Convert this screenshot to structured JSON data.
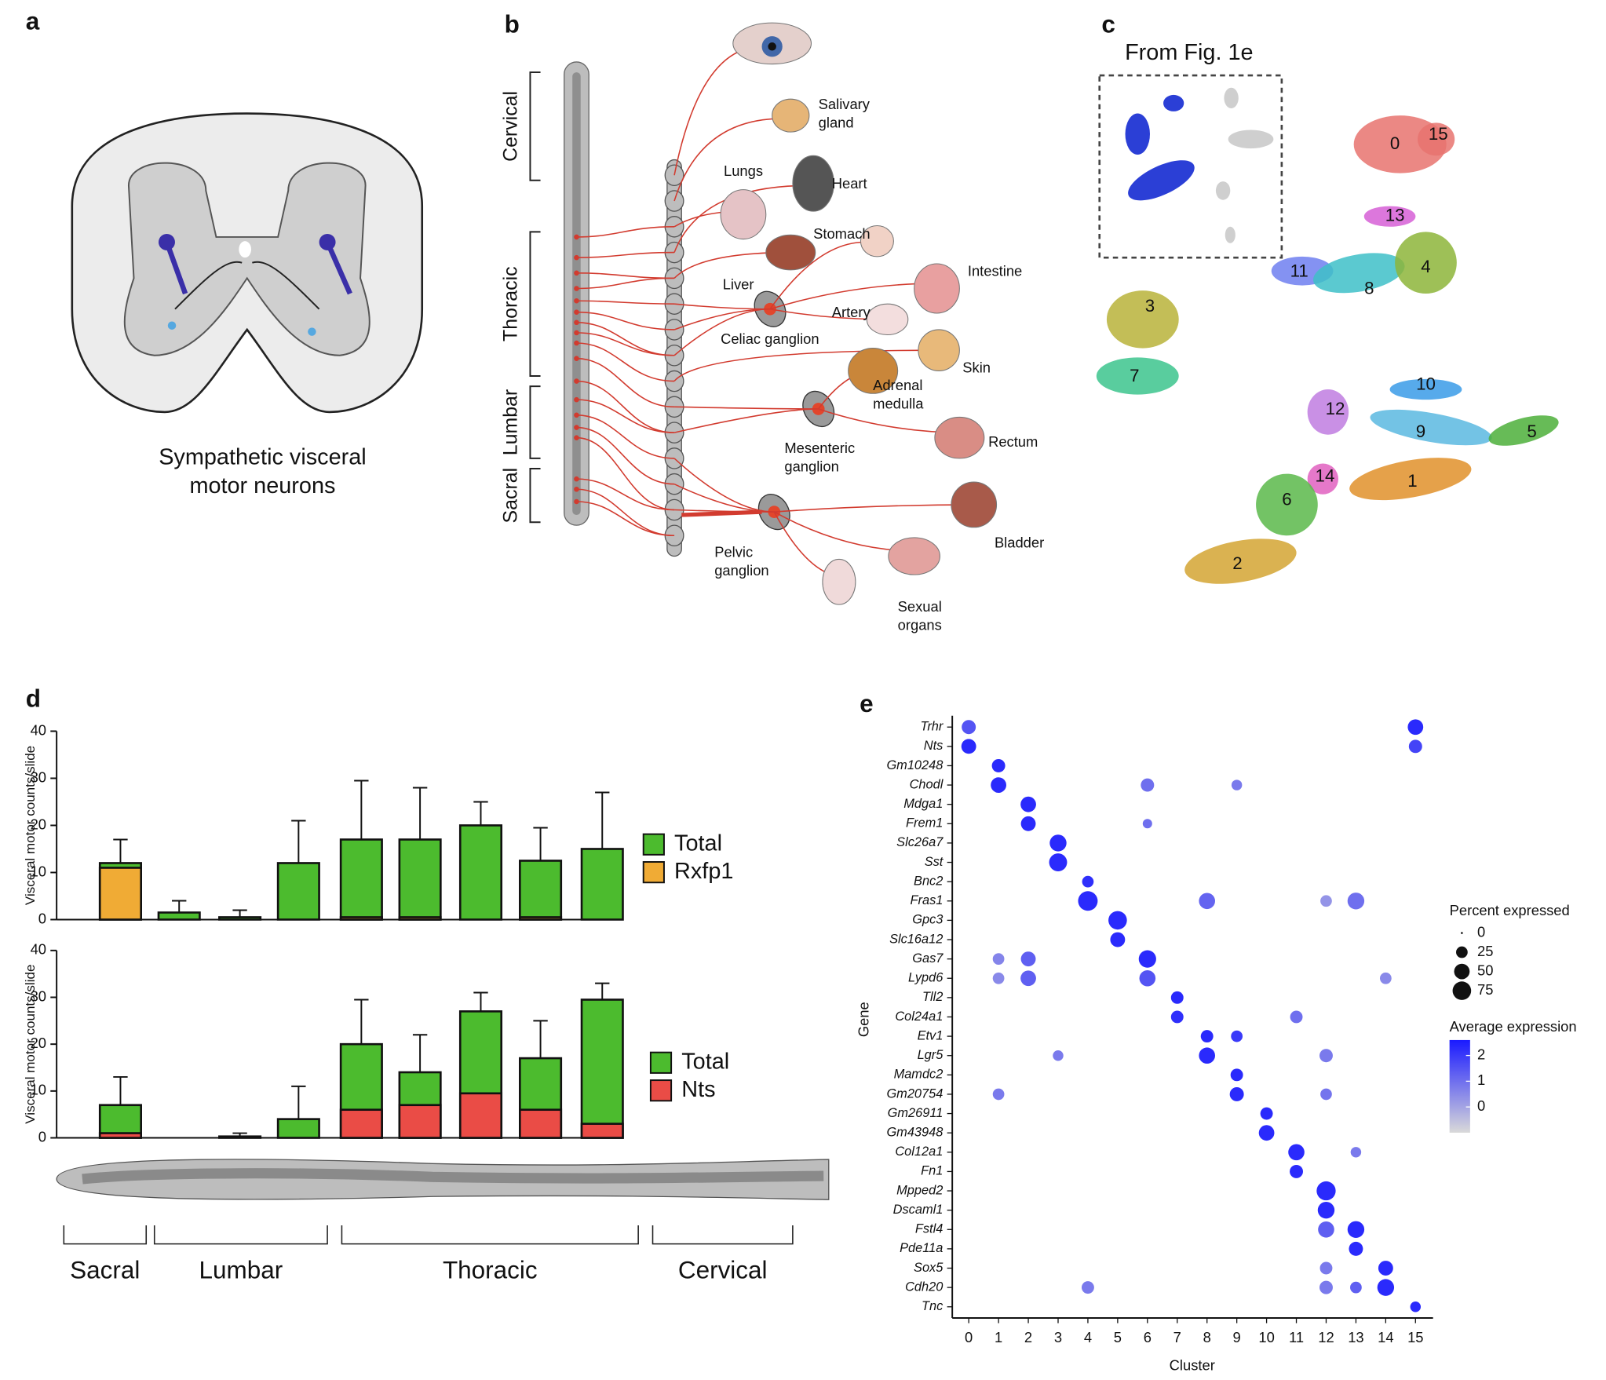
{
  "panel_labels": [
    "a",
    "b",
    "c",
    "d",
    "e"
  ],
  "panel_a": {
    "caption": [
      "Sympathetic visceral",
      "motor neurons"
    ]
  },
  "panel_b": {
    "regions": [
      "Cervical",
      "Thoracic",
      "Lumbar",
      "Sacral"
    ],
    "labels": [
      [
        "Salivary",
        "gland"
      ],
      [
        "Lungs"
      ],
      [
        "Heart"
      ],
      [
        "Stomach"
      ],
      [
        "Liver"
      ],
      [
        "Intestine"
      ],
      [
        "Artery"
      ],
      [
        "Celiac ganglion"
      ],
      [
        "Skin"
      ],
      [
        "Adrenal",
        "medulla"
      ],
      [
        "Mesenteric",
        "ganglion"
      ],
      [
        "Rectum"
      ],
      [
        "Pelvic",
        "ganglion"
      ],
      [
        "Bladder"
      ],
      [
        "Sexual",
        "organs"
      ]
    ]
  },
  "panel_c": {
    "inset_title": "From Fig. 1e",
    "cluster_labels": [
      "0",
      "15",
      "13",
      "11",
      "8",
      "4",
      "3",
      "7",
      "10",
      "12",
      "9",
      "5",
      "14",
      "1",
      "6",
      "2"
    ]
  },
  "region_labels": [
    "Sacral",
    "Lumbar",
    "Thoracic",
    "Cervical"
  ],
  "chart_data": [
    {
      "type": "bar",
      "y_label": "Visceral motor counts/slide",
      "ylim": [
        0,
        40
      ],
      "yticks": [
        0,
        10,
        20,
        30,
        40
      ],
      "series": [
        {
          "name": "Total",
          "color": "#4cbb2e",
          "values": [
            12,
            1.5,
            0.5,
            12,
            17,
            17,
            20,
            12.5,
            15
          ],
          "errors": [
            5,
            2.5,
            1.5,
            9,
            12.5,
            11,
            5,
            7,
            12
          ]
        },
        {
          "name": "Rxfp1",
          "color": "#f0ab35",
          "values": [
            11,
            0,
            0,
            0,
            0.5,
            0.5,
            0,
            0.5,
            0
          ]
        }
      ]
    },
    {
      "type": "bar",
      "y_label": "Visceral motor counts/slide",
      "ylim": [
        0,
        40
      ],
      "yticks": [
        0,
        10,
        20,
        30,
        40
      ],
      "series": [
        {
          "name": "Total",
          "color": "#4cbb2e",
          "values": [
            7,
            0,
            0.3,
            4,
            20,
            14,
            27,
            17,
            29.5
          ],
          "errors": [
            6,
            0,
            0.7,
            7,
            9.5,
            8,
            4,
            8,
            3.5
          ]
        },
        {
          "name": "Nts",
          "color": "#ea4c46",
          "values": [
            1,
            0,
            0,
            0,
            6,
            7,
            9.5,
            6,
            3
          ]
        }
      ]
    },
    {
      "type": "dot",
      "x_label": "Cluster",
      "y_label": "Gene",
      "xticks": [
        0,
        1,
        2,
        3,
        4,
        5,
        6,
        7,
        8,
        9,
        10,
        11,
        12,
        13,
        14,
        15
      ],
      "genes": [
        "Trhr",
        "Nts",
        "Gm10248",
        "Chodl",
        "Mdga1",
        "Frem1",
        "Slc26a7",
        "Sst",
        "Bnc2",
        "Fras1",
        "Gpc3",
        "Slc16a12",
        "Gas7",
        "Lypd6",
        "Tll2",
        "Col24a1",
        "Etv1",
        "Lgr5",
        "Mamdc2",
        "Gm20754",
        "Gm26911",
        "Gm43948",
        "Col12a1",
        "Fn1",
        "Mpped2",
        "Dscaml1",
        "Fstl4",
        "Pde11a",
        "Sox5",
        "Cdh20",
        "Tnc"
      ],
      "size_title": "Percent expressed",
      "size_ticks": [
        0,
        25,
        50,
        75
      ],
      "color_title": "Average expression",
      "color_lim": [
        -1,
        2.6
      ],
      "color_ticks": [
        2,
        1,
        0
      ],
      "color_low": "#d9d9d9",
      "color_high": "#1a1aff",
      "points": [
        {
          "gene": "Trhr",
          "cluster": 0,
          "pct": 40,
          "avg": 1.5
        },
        {
          "gene": "Trhr",
          "cluster": 15,
          "pct": 50,
          "avg": 2.3
        },
        {
          "gene": "Nts",
          "cluster": 0,
          "pct": 45,
          "avg": 2.3
        },
        {
          "gene": "Nts",
          "cluster": 15,
          "pct": 35,
          "avg": 1.8
        },
        {
          "gene": "Gm10248",
          "cluster": 1,
          "pct": 35,
          "avg": 2.3
        },
        {
          "gene": "Chodl",
          "cluster": 1,
          "pct": 50,
          "avg": 2.3
        },
        {
          "gene": "Chodl",
          "cluster": 6,
          "pct": 35,
          "avg": 1
        },
        {
          "gene": "Chodl",
          "cluster": 9,
          "pct": 20,
          "avg": 0.8
        },
        {
          "gene": "Mdga1",
          "cluster": 2,
          "pct": 50,
          "avg": 2.3
        },
        {
          "gene": "Frem1",
          "cluster": 2,
          "pct": 45,
          "avg": 2.3
        },
        {
          "gene": "Frem1",
          "cluster": 6,
          "pct": 15,
          "avg": 1
        },
        {
          "gene": "Slc26a7",
          "cluster": 3,
          "pct": 60,
          "avg": 2.3
        },
        {
          "gene": "Sst",
          "cluster": 3,
          "pct": 70,
          "avg": 2.3
        },
        {
          "gene": "Bnc2",
          "cluster": 4,
          "pct": 25,
          "avg": 2.2
        },
        {
          "gene": "Fras1",
          "cluster": 4,
          "pct": 85,
          "avg": 2.3
        },
        {
          "gene": "Fras1",
          "cluster": 8,
          "pct": 55,
          "avg": 1.2
        },
        {
          "gene": "Fras1",
          "cluster": 12,
          "pct": 25,
          "avg": 0.3
        },
        {
          "gene": "Fras1",
          "cluster": 13,
          "pct": 60,
          "avg": 1
        },
        {
          "gene": "Gpc3",
          "cluster": 5,
          "pct": 75,
          "avg": 2.3
        },
        {
          "gene": "Slc16a12",
          "cluster": 5,
          "pct": 45,
          "avg": 2.3
        },
        {
          "gene": "Gas7",
          "cluster": 1,
          "pct": 25,
          "avg": 0.6
        },
        {
          "gene": "Gas7",
          "cluster": 2,
          "pct": 45,
          "avg": 1.3
        },
        {
          "gene": "Gas7",
          "cluster": 6,
          "pct": 65,
          "avg": 2.3
        },
        {
          "gene": "Lypd6",
          "cluster": 1,
          "pct": 25,
          "avg": 0.5
        },
        {
          "gene": "Lypd6",
          "cluster": 2,
          "pct": 50,
          "avg": 1.3
        },
        {
          "gene": "Lypd6",
          "cluster": 6,
          "pct": 55,
          "avg": 1.5
        },
        {
          "gene": "Lypd6",
          "cluster": 14,
          "pct": 25,
          "avg": 0.5
        },
        {
          "gene": "Tll2",
          "cluster": 7,
          "pct": 30,
          "avg": 2.3
        },
        {
          "gene": "Col24a1",
          "cluster": 7,
          "pct": 30,
          "avg": 2.2
        },
        {
          "gene": "Col24a1",
          "cluster": 11,
          "pct": 30,
          "avg": 1
        },
        {
          "gene": "Etv1",
          "cluster": 8,
          "pct": 30,
          "avg": 2.3
        },
        {
          "gene": "Etv1",
          "cluster": 9,
          "pct": 25,
          "avg": 2
        },
        {
          "gene": "Lgr5",
          "cluster": 3,
          "pct": 20,
          "avg": 0.8
        },
        {
          "gene": "Lgr5",
          "cluster": 8,
          "pct": 55,
          "avg": 2.3
        },
        {
          "gene": "Lgr5",
          "cluster": 12,
          "pct": 35,
          "avg": 0.8
        },
        {
          "gene": "Mamdc2",
          "cluster": 9,
          "pct": 30,
          "avg": 2.3
        },
        {
          "gene": "Gm20754",
          "cluster": 1,
          "pct": 25,
          "avg": 0.8
        },
        {
          "gene": "Gm20754",
          "cluster": 9,
          "pct": 40,
          "avg": 2.3
        },
        {
          "gene": "Gm20754",
          "cluster": 12,
          "pct": 25,
          "avg": 0.9
        },
        {
          "gene": "Gm26911",
          "cluster": 10,
          "pct": 30,
          "avg": 2.3
        },
        {
          "gene": "Gm43948",
          "cluster": 10,
          "pct": 50,
          "avg": 2.3
        },
        {
          "gene": "Col12a1",
          "cluster": 11,
          "pct": 55,
          "avg": 2.3
        },
        {
          "gene": "Col12a1",
          "cluster": 13,
          "pct": 20,
          "avg": 0.8
        },
        {
          "gene": "Fn1",
          "cluster": 11,
          "pct": 35,
          "avg": 2.3
        },
        {
          "gene": "Mpped2",
          "cluster": 12,
          "pct": 80,
          "avg": 2.3
        },
        {
          "gene": "Dscaml1",
          "cluster": 12,
          "pct": 60,
          "avg": 2.3
        },
        {
          "gene": "Fstl4",
          "cluster": 12,
          "pct": 55,
          "avg": 1.3
        },
        {
          "gene": "Fstl4",
          "cluster": 13,
          "pct": 60,
          "avg": 2.3
        },
        {
          "gene": "Pde11a",
          "cluster": 13,
          "pct": 40,
          "avg": 2.3
        },
        {
          "gene": "Sox5",
          "cluster": 12,
          "pct": 30,
          "avg": 0.8
        },
        {
          "gene": "Sox5",
          "cluster": 14,
          "pct": 45,
          "avg": 2.3
        },
        {
          "gene": "Cdh20",
          "cluster": 4,
          "pct": 30,
          "avg": 0.8
        },
        {
          "gene": "Cdh20",
          "cluster": 12,
          "pct": 35,
          "avg": 0.8
        },
        {
          "gene": "Cdh20",
          "cluster": 13,
          "pct": 25,
          "avg": 1.3
        },
        {
          "gene": "Cdh20",
          "cluster": 14,
          "pct": 60,
          "avg": 2.3
        },
        {
          "gene": "Tnc",
          "cluster": 15,
          "pct": 20,
          "avg": 2.3
        }
      ]
    }
  ]
}
